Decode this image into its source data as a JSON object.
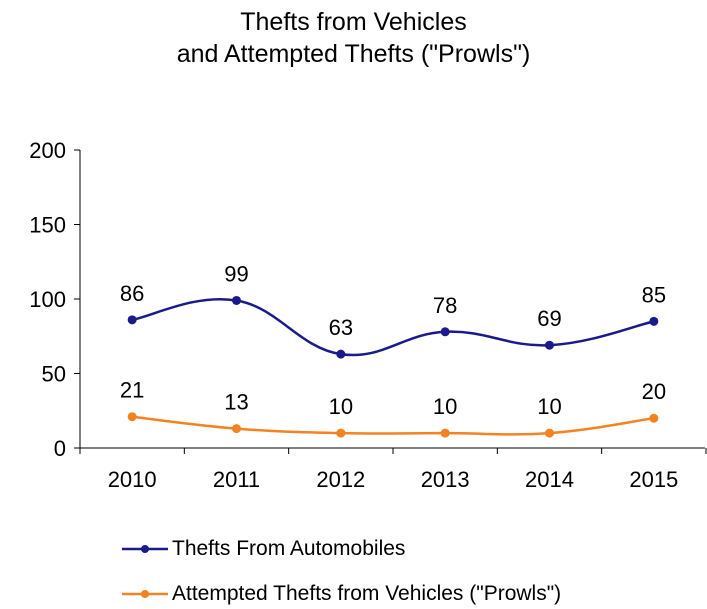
{
  "chart_data": {
    "type": "line",
    "title_line1": "Thefts from Vehicles",
    "title_line2": "and Attempted Thefts (\"Prowls\")",
    "categories": [
      "2010",
      "2011",
      "2012",
      "2013",
      "2014",
      "2015"
    ],
    "ylim": [
      0,
      200
    ],
    "yticks": [
      "0",
      "50",
      "100",
      "150",
      "200"
    ],
    "series": [
      {
        "name": "Thefts From Automobiles",
        "color": "#1a1a8c",
        "values": [
          86,
          99,
          63,
          78,
          69,
          85
        ],
        "smooth": true
      },
      {
        "name": "Attempted Thefts from Vehicles (\"Prowls\")",
        "color": "#f58220",
        "values": [
          21,
          13,
          10,
          10,
          10,
          20
        ],
        "smooth": true
      }
    ],
    "grid": false,
    "legend_position": "bottom"
  }
}
